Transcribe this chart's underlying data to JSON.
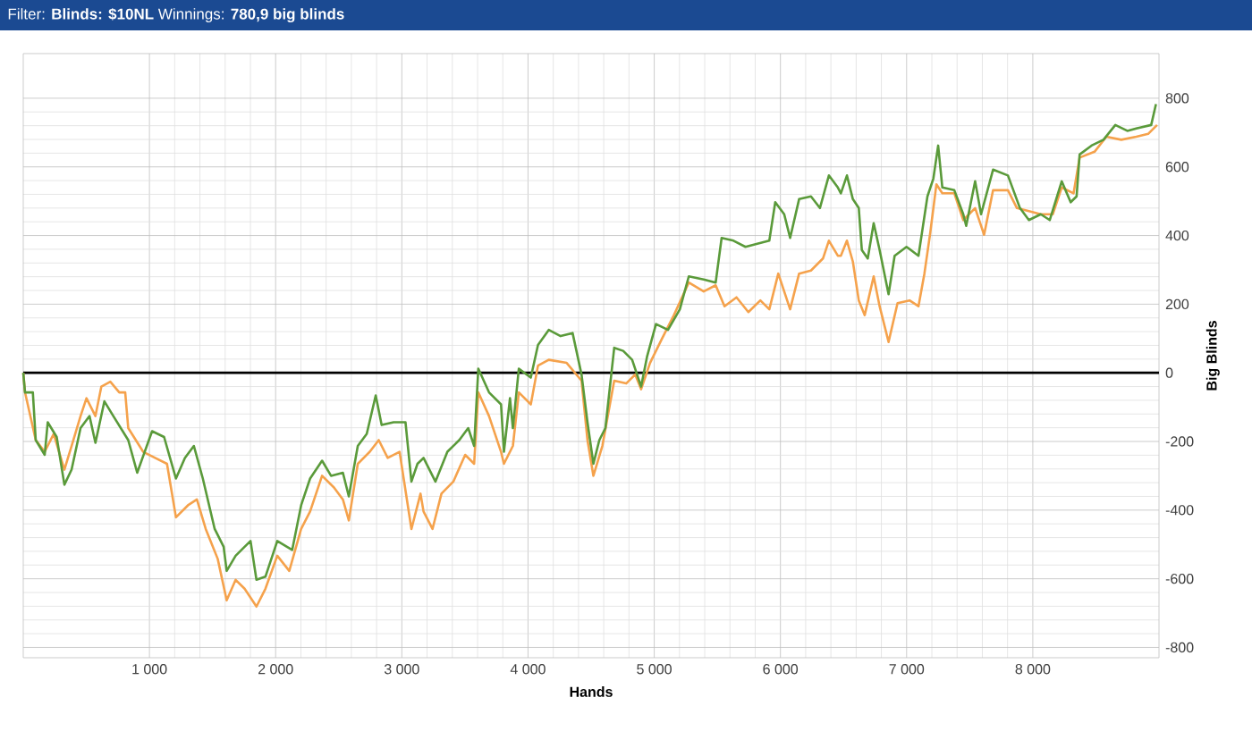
{
  "chart_data": {
    "type": "line",
    "title": "Filter: **Blinds: $10NL** Winnings: **780,9 big blinds**",
    "xlabel": "Hands",
    "ylabel": "Big Blinds",
    "xlim": [
      0,
      9000
    ],
    "ylim": [
      -830,
      930
    ],
    "xticks": [
      {
        "value": 1000,
        "label": "1 000"
      },
      {
        "value": 2000,
        "label": "2 000"
      },
      {
        "value": 3000,
        "label": "3 000"
      },
      {
        "value": 4000,
        "label": "4 000"
      },
      {
        "value": 5000,
        "label": "5 000"
      },
      {
        "value": 6000,
        "label": "6 000"
      },
      {
        "value": 7000,
        "label": "7 000"
      },
      {
        "value": 8000,
        "label": "8 000"
      }
    ],
    "yticks": [
      -800,
      -600,
      -400,
      -200,
      0,
      200,
      400,
      600,
      800
    ],
    "grid": true,
    "ref_lines": [
      {
        "axis": "y",
        "value": 0,
        "color": "#000000"
      }
    ],
    "series": [
      {
        "color": "#f5a24c",
        "x": [
          0,
          14,
          99,
          170,
          241,
          326,
          383,
          454,
          501,
          572,
          619,
          690,
          761,
          808,
          832,
          950,
          1045,
          1139,
          1210,
          1305,
          1376,
          1446,
          1541,
          1612,
          1683,
          1754,
          1848,
          1919,
          2013,
          2108,
          2202,
          2273,
          2368,
          2462,
          2533,
          2580,
          2651,
          2746,
          2817,
          2888,
          2982,
          3076,
          3148,
          3172,
          3243,
          3314,
          3408,
          3502,
          3573,
          3606,
          3691,
          3786,
          3809,
          3880,
          3927,
          4022,
          4079,
          4164,
          4306,
          4424,
          4471,
          4518,
          4589,
          4683,
          4778,
          4849,
          4896,
          4967,
          5061,
          5156,
          5274,
          5392,
          5487,
          5557,
          5652,
          5746,
          5841,
          5912,
          5983,
          6077,
          6148,
          6242,
          6337,
          6384,
          6455,
          6479,
          6527,
          6574,
          6621,
          6668,
          6739,
          6786,
          6857,
          6928,
          7023,
          7094,
          7141,
          7188,
          7236,
          7283,
          7378,
          7449,
          7543,
          7614,
          7685,
          7803,
          7874,
          7969,
          8063,
          8158,
          8229,
          8323,
          8371,
          8489,
          8583,
          8701,
          8820,
          8914,
          8985
        ],
        "values": [
          0,
          -57,
          -196,
          -230,
          -178,
          -282,
          -213,
          -126,
          -74,
          -126,
          -40,
          -26,
          -57,
          -57,
          -161,
          -230,
          -248,
          -265,
          -421,
          -386,
          -369,
          -455,
          -542,
          -663,
          -603,
          -629,
          -681,
          -629,
          -533,
          -577,
          -455,
          -404,
          -300,
          -334,
          -369,
          -430,
          -265,
          -230,
          -196,
          -248,
          -230,
          -455,
          -352,
          -404,
          -455,
          -352,
          -317,
          -239,
          -265,
          -57,
          -126,
          -230,
          -265,
          -213,
          -57,
          -92,
          21,
          38,
          29,
          -23,
          -196,
          -300,
          -213,
          -23,
          -31,
          -5,
          -48,
          29,
          99,
          168,
          263,
          237,
          255,
          194,
          220,
          177,
          211,
          185,
          289,
          185,
          289,
          298,
          333,
          385,
          341,
          341,
          385,
          324,
          211,
          168,
          281,
          194,
          90,
          203,
          211,
          194,
          289,
          410,
          549,
          523,
          523,
          445,
          480,
          402,
          532,
          532,
          480,
          471,
          462,
          462,
          540,
          523,
          627,
          644,
          688,
          679,
          688,
          696,
          722
        ]
      },
      {
        "color": "#5a9a3a",
        "x": [
          0,
          14,
          76,
          99,
          170,
          194,
          265,
          326,
          383,
          454,
          525,
          572,
          643,
          714,
          832,
          903,
          1021,
          1116,
          1210,
          1281,
          1352,
          1423,
          1517,
          1588,
          1612,
          1683,
          1754,
          1801,
          1848,
          1919,
          2013,
          2131,
          2202,
          2273,
          2368,
          2439,
          2533,
          2580,
          2651,
          2722,
          2793,
          2840,
          2935,
          3029,
          3076,
          3124,
          3172,
          3266,
          3361,
          3455,
          3526,
          3573,
          3606,
          3691,
          3786,
          3809,
          3857,
          3880,
          3927,
          4022,
          4079,
          4164,
          4258,
          4353,
          4424,
          4471,
          4518,
          4565,
          4613,
          4683,
          4754,
          4825,
          4896,
          4943,
          5014,
          5109,
          5203,
          5274,
          5392,
          5487,
          5534,
          5628,
          5723,
          5817,
          5912,
          5959,
          6030,
          6077,
          6148,
          6242,
          6313,
          6384,
          6455,
          6479,
          6527,
          6574,
          6621,
          6645,
          6692,
          6739,
          6786,
          6857,
          6905,
          6999,
          7094,
          7165,
          7212,
          7250,
          7283,
          7378,
          7449,
          7472,
          7543,
          7590,
          7685,
          7803,
          7898,
          7969,
          8063,
          8134,
          8229,
          8300,
          8347,
          8371,
          8465,
          8560,
          8654,
          8749,
          8843,
          8938,
          8976
        ],
        "values": [
          0,
          -57,
          -57,
          -196,
          -239,
          -144,
          -187,
          -326,
          -282,
          -161,
          -126,
          -204,
          -83,
          -126,
          -196,
          -291,
          -170,
          -187,
          -308,
          -248,
          -213,
          -308,
          -455,
          -507,
          -577,
          -533,
          -507,
          -490,
          -603,
          -594,
          -490,
          -516,
          -386,
          -308,
          -256,
          -300,
          -291,
          -360,
          -213,
          -178,
          -66,
          -152,
          -144,
          -144,
          -317,
          -265,
          -248,
          -317,
          -230,
          -196,
          -161,
          -213,
          12,
          -57,
          -92,
          -230,
          -74,
          -161,
          12,
          -14,
          81,
          125,
          107,
          116,
          -5,
          -144,
          -265,
          -196,
          -161,
          73,
          64,
          38,
          -40,
          47,
          142,
          125,
          185,
          281,
          272,
          263,
          393,
          385,
          367,
          376,
          385,
          497,
          462,
          393,
          506,
          514,
          480,
          575,
          540,
          523,
          575,
          506,
          480,
          358,
          333,
          436,
          358,
          229,
          341,
          367,
          341,
          514,
          566,
          662,
          540,
          532,
          462,
          428,
          558,
          462,
          592,
          575,
          480,
          445,
          462,
          445,
          558,
          497,
          514,
          636,
          662,
          679,
          722,
          705,
          714,
          722,
          783
        ]
      }
    ]
  }
}
